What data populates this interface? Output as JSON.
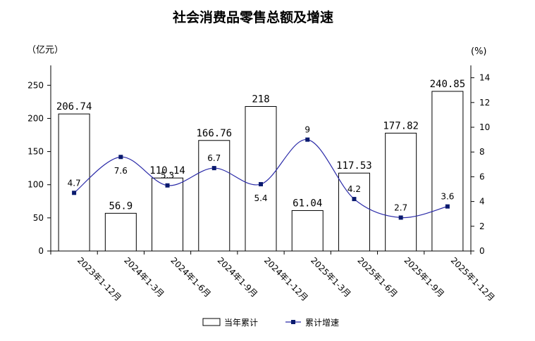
{
  "chart_data": {
    "type": "bar",
    "title": "社会消费品零售总额及增速",
    "y_left_label": "（亿元）",
    "y_right_label": "(%)",
    "categories": [
      "2023年1-12月",
      "2024年1-3月",
      "2024年1-6月",
      "2024年1-9月",
      "2024年1-12月",
      "2025年1-3月",
      "2025年1-6月",
      "2025年1-9月",
      "2025年1-12月"
    ],
    "series": [
      {
        "name": "当年累计",
        "type": "bar",
        "axis": "left",
        "values": [
          206.74,
          56.9,
          110.14,
          166.76,
          218,
          61.04,
          117.53,
          177.82,
          240.85
        ],
        "labels": [
          "206.74",
          "56.9",
          "110.14",
          "166.76",
          "218",
          "61.04",
          "117.53",
          "177.82",
          "240.85"
        ]
      },
      {
        "name": "累计增速",
        "type": "line",
        "axis": "right",
        "values": [
          4.7,
          7.6,
          5.3,
          6.7,
          5.4,
          9,
          4.2,
          2.7,
          3.6
        ],
        "labels": [
          "4.7",
          "7.6",
          "5.3",
          "6.7",
          "5.4",
          "9",
          "4.2",
          "2.7",
          "3.6"
        ]
      }
    ],
    "y_left": {
      "min": 0,
      "max": 280,
      "ticks": [
        0,
        50,
        100,
        150,
        200,
        250
      ]
    },
    "y_right": {
      "min": 0,
      "max": 15,
      "ticks": [
        0,
        2,
        4,
        6,
        8,
        10,
        12,
        14
      ]
    },
    "legend_position": "bottom",
    "line_color": "#2a2aa8",
    "marker_color": "#0a1a6e",
    "bar_fill": "#ffffff",
    "bar_stroke": "#000000",
    "grid": false
  }
}
